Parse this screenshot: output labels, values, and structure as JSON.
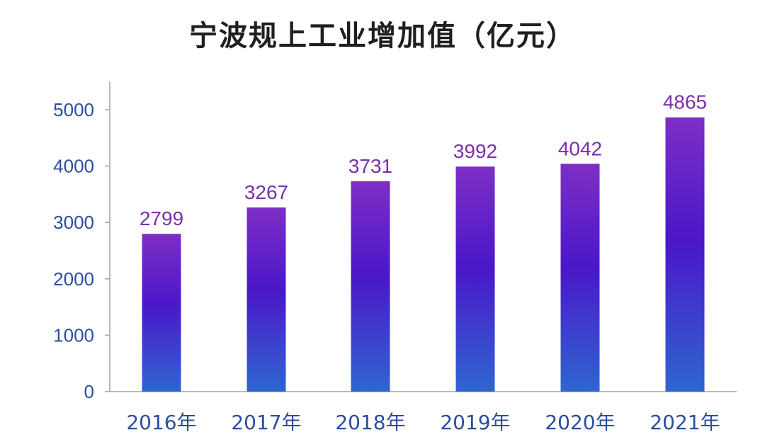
{
  "chart_data": {
    "type": "bar",
    "title": "宁波规上工业增加值（亿元）",
    "categories": [
      "2016年",
      "2017年",
      "2018年",
      "2019年",
      "2020年",
      "2021年"
    ],
    "values": [
      2799,
      3267,
      3731,
      3992,
      4042,
      4865
    ],
    "ylim": [
      0,
      5500
    ],
    "yticks": [
      0,
      1000,
      2000,
      3000,
      4000,
      5000
    ],
    "grid": false,
    "colors": {
      "bar_top": "#7e2ec6",
      "bar_mid": "#4a17c8",
      "bar_bottom": "#2e66d0",
      "label": "#7b2fa8",
      "axis": "#2a4ea0"
    }
  }
}
